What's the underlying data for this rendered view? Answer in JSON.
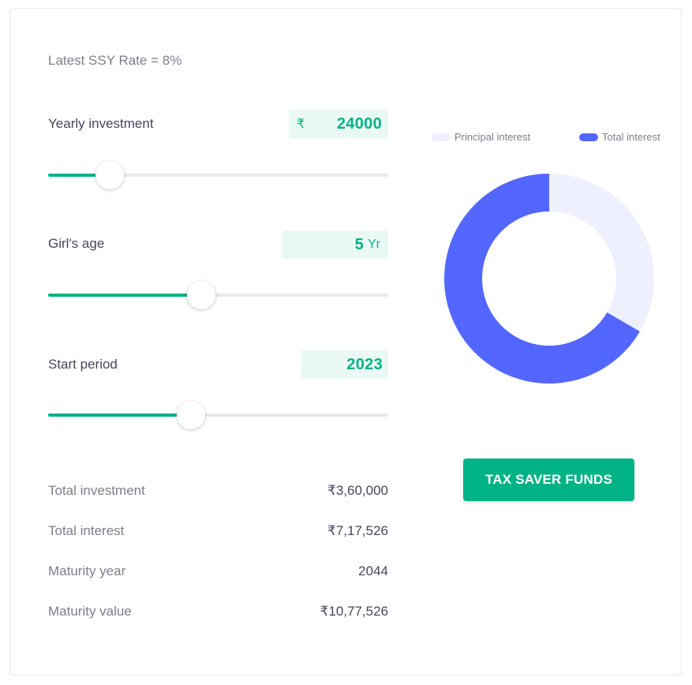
{
  "rate_text": "Latest SSY Rate = 8%",
  "inputs": {
    "yearly": {
      "label": "Yearly investment",
      "currency": "₹",
      "value": "24000",
      "slider_fraction": 0.18
    },
    "age": {
      "label": "Girl's age",
      "value": "5",
      "unit": "Yr",
      "slider_fraction": 0.45
    },
    "start": {
      "label": "Start period",
      "value": "2023",
      "slider_fraction": 0.42
    }
  },
  "summary": [
    {
      "label": "Total investment",
      "value": "₹3,60,000"
    },
    {
      "label": "Total interest",
      "value": "₹7,17,526"
    },
    {
      "label": "Maturity year",
      "value": "2044"
    },
    {
      "label": "Maturity value",
      "value": "₹10,77,526"
    }
  ],
  "chart_data": {
    "type": "pie",
    "labels": [
      "Principal interest",
      "Total interest"
    ],
    "values": [
      360000,
      717526
    ],
    "colors": [
      "#eef0fd",
      "#5367ff"
    ],
    "legend_placement": "top"
  },
  "cta_label": "TAX SAVER FUNDS"
}
